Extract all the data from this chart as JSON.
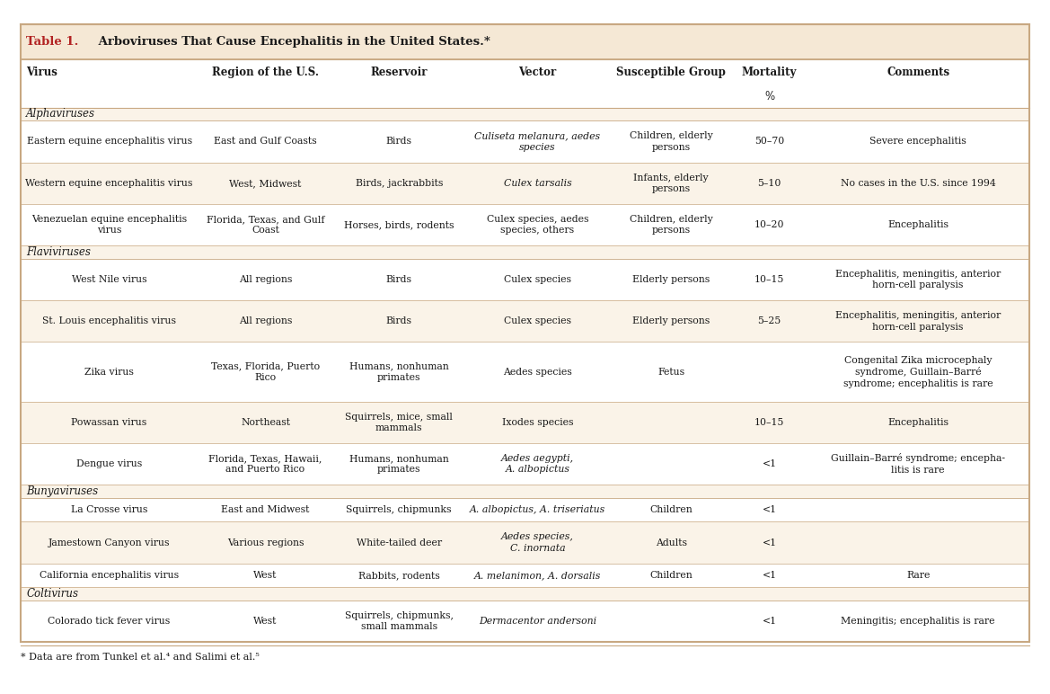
{
  "title_red": "Table 1.",
  "title_black": " Arboviruses That Cause Encephalitis in the United States.*",
  "footnote": "* Data are from Tunkel et al.⁴ and Salimi et al.⁵",
  "headers": [
    "Virus",
    "Region of the U.S.",
    "Reservoir",
    "Vector",
    "Susceptible Group",
    "Mortality",
    "Comments"
  ],
  "mortality_subheader": "%",
  "bg_title": "#f5e8d5",
  "bg_group": "#faf3e8",
  "bg_white": "#ffffff",
  "bg_tan": "#faf3e8",
  "border_color": "#c8a882",
  "text_color": "#1a1a1a",
  "red_color": "#b22222",
  "col_weights": [
    1.75,
    1.35,
    1.3,
    1.45,
    1.2,
    0.75,
    2.2
  ],
  "rows": [
    {
      "type": "group",
      "text": "Alphaviruses"
    },
    {
      "type": "data",
      "bg": "white",
      "cells": [
        "Eastern equine encephalitis virus",
        "East and Gulf Coasts",
        "Birds",
        "Culiseta melanura, aedes\nspecies",
        "Children, elderly\npersons",
        "50–70",
        "Severe encephalitis"
      ],
      "italic_col": 3
    },
    {
      "type": "data",
      "bg": "tan",
      "cells": [
        "Western equine encephalitis virus",
        "West, Midwest",
        "Birds, jackrabbits",
        "Culex tarsalis",
        "Infants, elderly\npersons",
        "5–10",
        "No cases in the U.S. since 1994"
      ],
      "italic_col": 3
    },
    {
      "type": "data",
      "bg": "white",
      "cells": [
        "Venezuelan equine encephalitis\nvirus",
        "Florida, Texas, and Gulf\nCoast",
        "Horses, birds, rodents",
        "Culex species, aedes\nspecies, others",
        "Children, elderly\npersons",
        "10–20",
        "Encephalitis"
      ],
      "italic_col": -1
    },
    {
      "type": "group",
      "text": "Flaviviruses"
    },
    {
      "type": "data",
      "bg": "white",
      "cells": [
        "West Nile virus",
        "All regions",
        "Birds",
        "Culex species",
        "Elderly persons",
        "10–15",
        "Encephalitis, meningitis, anterior\nhorn-cell paralysis"
      ],
      "italic_col": -1
    },
    {
      "type": "data",
      "bg": "tan",
      "cells": [
        "St. Louis encephalitis virus",
        "All regions",
        "Birds",
        "Culex species",
        "Elderly persons",
        "5–25",
        "Encephalitis, meningitis, anterior\nhorn-cell paralysis"
      ],
      "italic_col": -1
    },
    {
      "type": "data",
      "bg": "white",
      "cells": [
        "Zika virus",
        "Texas, Florida, Puerto\nRico",
        "Humans, nonhuman\nprimates",
        "Aedes species",
        "Fetus",
        "",
        "Congenital Zika microcephaly\nsyndrome, Guillain–Barré\nsyndrome; encephalitis is rare"
      ],
      "italic_col": -1
    },
    {
      "type": "data",
      "bg": "tan",
      "cells": [
        "Powassan virus",
        "Northeast",
        "Squirrels, mice, small\nmammals",
        "Ixodes species",
        "",
        "10–15",
        "Encephalitis"
      ],
      "italic_col": -1
    },
    {
      "type": "data",
      "bg": "white",
      "cells": [
        "Dengue virus",
        "Florida, Texas, Hawaii,\nand Puerto Rico",
        "Humans, nonhuman\nprimates",
        "Aedes aegypti,\nA. albopictus",
        "",
        "<1",
        "Guillain–Barré syndrome; encepha-\nlitis is rare"
      ],
      "italic_col": 3
    },
    {
      "type": "group",
      "text": "Bunyaviruses"
    },
    {
      "type": "data",
      "bg": "white",
      "cells": [
        "La Crosse virus",
        "East and Midwest",
        "Squirrels, chipmunks",
        "A. albopictus, A. triseriatus",
        "Children",
        "<1",
        ""
      ],
      "italic_col": 3
    },
    {
      "type": "data",
      "bg": "tan",
      "cells": [
        "Jamestown Canyon virus",
        "Various regions",
        "White-tailed deer",
        "Aedes species,\nC. inornata",
        "Adults",
        "<1",
        ""
      ],
      "italic_col": 3
    },
    {
      "type": "data",
      "bg": "white",
      "cells": [
        "California encephalitis virus",
        "West",
        "Rabbits, rodents",
        "A. melanimon, A. dorsalis",
        "Children",
        "<1",
        "Rare"
      ],
      "italic_col": 3
    },
    {
      "type": "group",
      "text": "Coltivirus"
    },
    {
      "type": "data",
      "bg": "white",
      "cells": [
        "Colorado tick fever virus",
        "West",
        "Squirrels, chipmunks,\nsmall mammals",
        "Dermacentor andersoni",
        "",
        "<1",
        "Meningitis; encephalitis is rare"
      ],
      "italic_col": 3
    }
  ]
}
